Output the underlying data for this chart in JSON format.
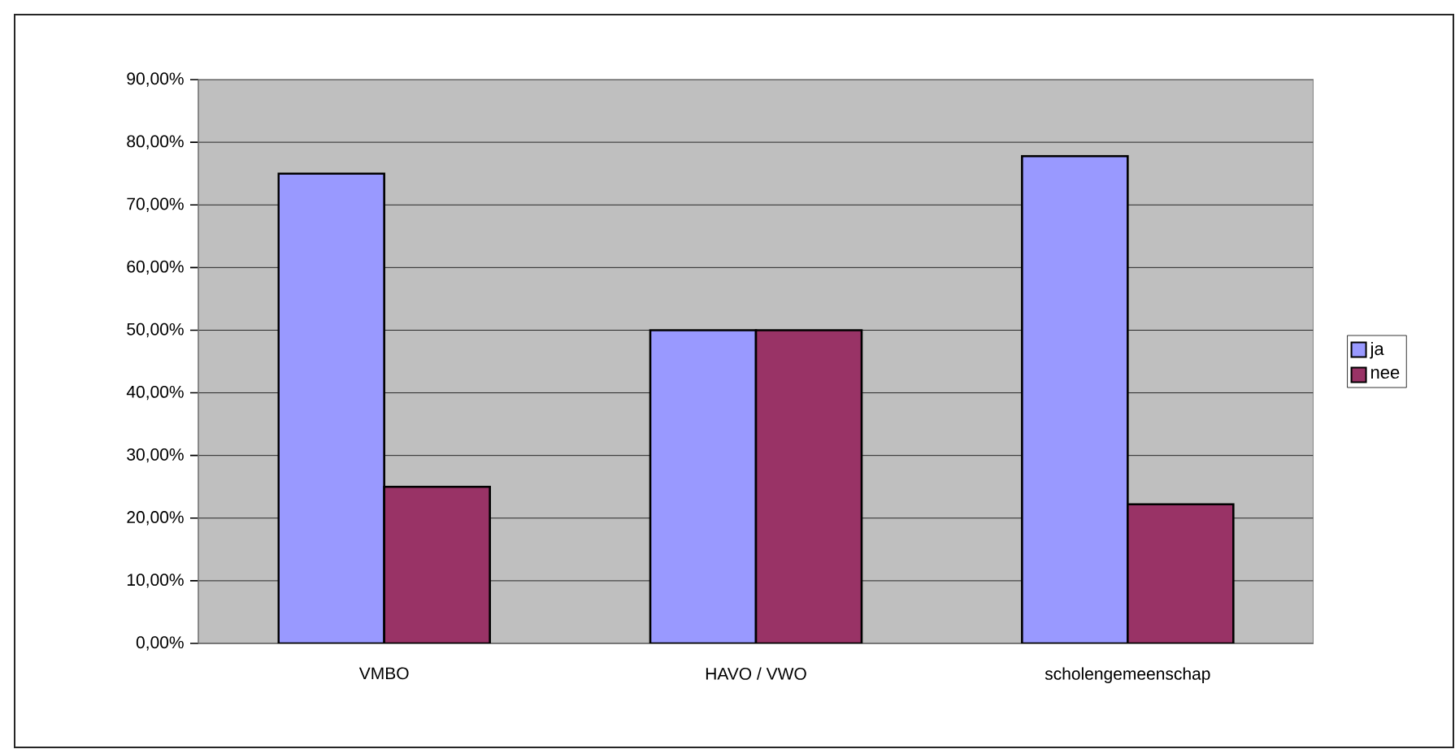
{
  "chart_data": {
    "type": "bar",
    "categories": [
      "VMBO",
      "HAVO / VWO",
      "scholengemeenschap"
    ],
    "series": [
      {
        "name": "ja",
        "color": "#9999ff",
        "values": [
          75,
          50,
          77.8
        ]
      },
      {
        "name": "nee",
        "color": "#993366",
        "values": [
          25,
          50,
          22.2
        ]
      }
    ],
    "ylim": [
      0,
      90
    ],
    "yticks": [
      {
        "value": 0,
        "label": "0,00%"
      },
      {
        "value": 10,
        "label": "10,00%"
      },
      {
        "value": 20,
        "label": "20,00%"
      },
      {
        "value": 30,
        "label": "30,00%"
      },
      {
        "value": 40,
        "label": "40,00%"
      },
      {
        "value": 50,
        "label": "50,00%"
      },
      {
        "value": 60,
        "label": "60,00%"
      },
      {
        "value": 70,
        "label": "70,00%"
      },
      {
        "value": 80,
        "label": "80,00%"
      },
      {
        "value": 90,
        "label": "90,00%"
      }
    ],
    "grid": "y",
    "legend": "right"
  }
}
